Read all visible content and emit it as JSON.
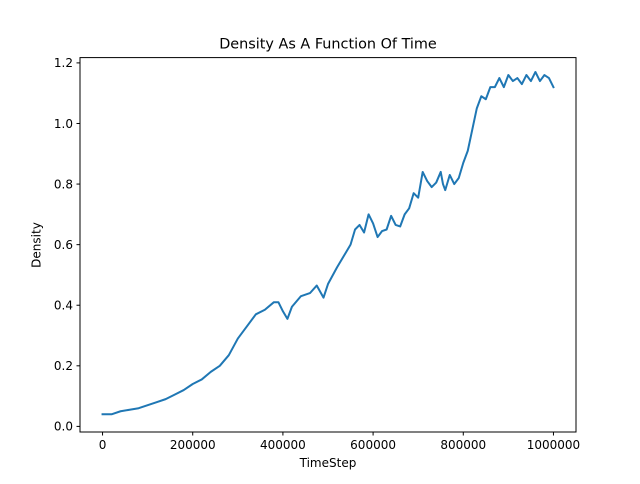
{
  "chart_data": {
    "type": "line",
    "title": "Density As A Function Of Time",
    "xlabel": "TimeStep",
    "ylabel": "Density",
    "xlim": [
      -50000,
      1050000
    ],
    "ylim": [
      -0.0185,
      1.2175
    ],
    "grid": false,
    "legend": "none",
    "xticks": [
      0,
      200000,
      400000,
      600000,
      800000,
      1000000
    ],
    "xtick_labels": [
      "0",
      "200000",
      "400000",
      "600000",
      "800000",
      "1000000"
    ],
    "yticks": [
      0.0,
      0.2,
      0.4,
      0.6,
      0.8,
      1.0,
      1.2
    ],
    "ytick_labels": [
      "0.0",
      "0.2",
      "0.4",
      "0.6",
      "0.8",
      "1.0",
      "1.2"
    ],
    "series": [
      {
        "color": "#1f77b4",
        "x": [
          0,
          20000,
          40000,
          60000,
          80000,
          100000,
          120000,
          140000,
          160000,
          180000,
          200000,
          220000,
          240000,
          260000,
          280000,
          300000,
          320000,
          340000,
          360000,
          380000,
          390000,
          400000,
          410000,
          420000,
          440000,
          460000,
          475000,
          490000,
          500000,
          520000,
          540000,
          550000,
          560000,
          570000,
          580000,
          590000,
          600000,
          610000,
          620000,
          630000,
          640000,
          650000,
          660000,
          670000,
          680000,
          690000,
          700000,
          710000,
          720000,
          730000,
          740000,
          750000,
          755000,
          760000,
          770000,
          780000,
          790000,
          800000,
          810000,
          820000,
          830000,
          840000,
          850000,
          860000,
          870000,
          880000,
          890000,
          900000,
          910000,
          920000,
          930000,
          940000,
          950000,
          960000,
          970000,
          980000,
          990000,
          1000000
        ],
        "y": [
          0.04,
          0.04,
          0.05,
          0.055,
          0.06,
          0.07,
          0.08,
          0.09,
          0.105,
          0.12,
          0.14,
          0.155,
          0.18,
          0.2,
          0.235,
          0.29,
          0.33,
          0.37,
          0.385,
          0.41,
          0.41,
          0.38,
          0.355,
          0.395,
          0.43,
          0.44,
          0.465,
          0.425,
          0.47,
          0.525,
          0.575,
          0.6,
          0.65,
          0.665,
          0.64,
          0.7,
          0.67,
          0.625,
          0.645,
          0.65,
          0.695,
          0.665,
          0.66,
          0.7,
          0.72,
          0.77,
          0.755,
          0.84,
          0.81,
          0.79,
          0.805,
          0.84,
          0.8,
          0.78,
          0.83,
          0.8,
          0.82,
          0.87,
          0.91,
          0.98,
          1.05,
          1.09,
          1.08,
          1.12,
          1.12,
          1.15,
          1.12,
          1.16,
          1.14,
          1.15,
          1.13,
          1.16,
          1.14,
          1.17,
          1.14,
          1.16,
          1.15,
          1.12
        ]
      }
    ]
  }
}
